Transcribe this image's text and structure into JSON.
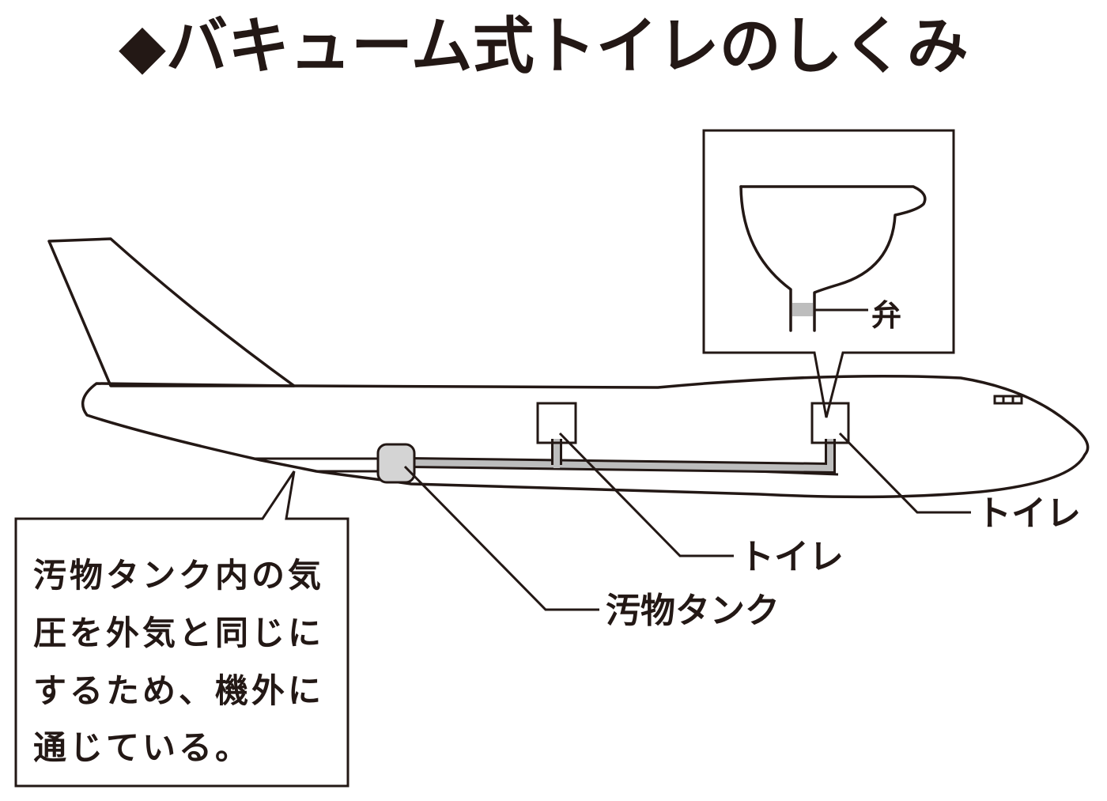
{
  "title": "◆バキューム式トイレのしくみ",
  "labels": {
    "valve": "弁",
    "toilet_front": "トイレ",
    "toilet_mid": "トイレ",
    "tank": "汚物タンク"
  },
  "note": {
    "lines": [
      "汚物タンク内の気",
      "圧を外気と同じに",
      "するため、機外に",
      "通じている。"
    ]
  },
  "colors": {
    "ink": "#231815",
    "pipe": "#bdbdbd",
    "tank": "#d4d4d4",
    "background": "#ffffff"
  }
}
